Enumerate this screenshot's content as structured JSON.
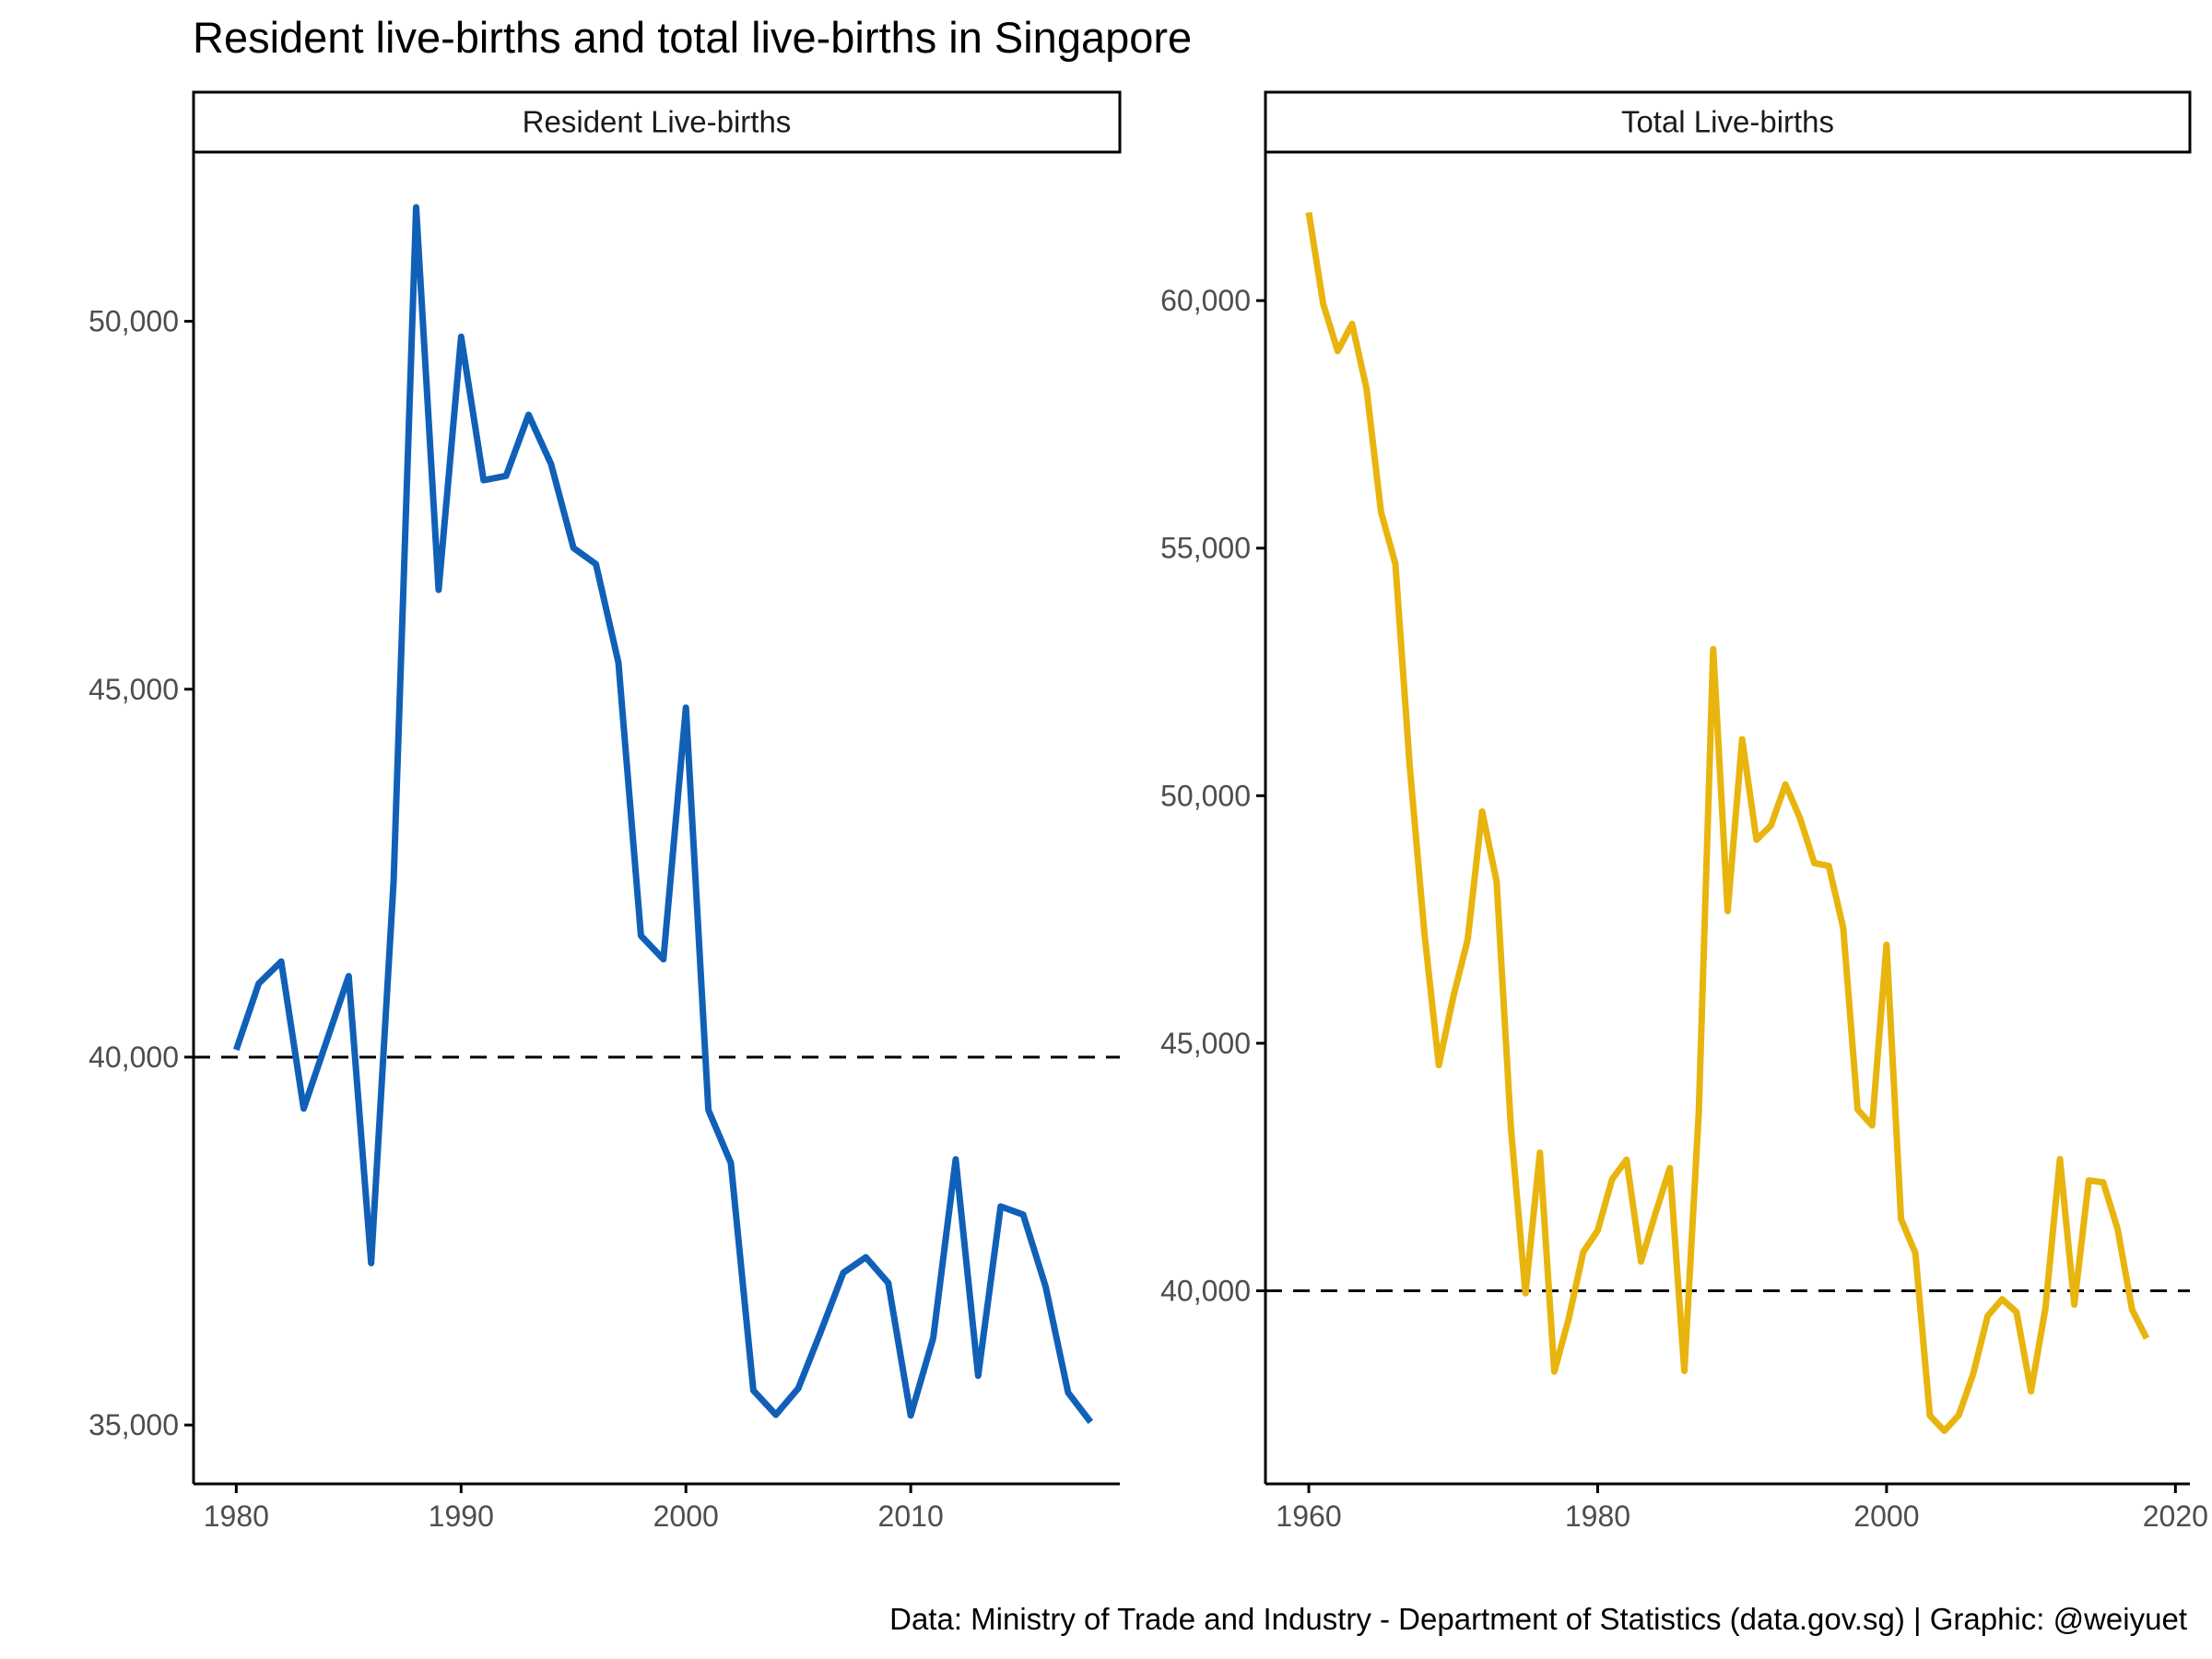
{
  "title": "Resident live-births and total live-births in Singapore",
  "caption": "Data: Ministry of Trade and Industry - Department of Statistics (data.gov.sg) | Graphic: @weiyuet",
  "chart_data": [
    {
      "type": "line",
      "panel_label": "Resident Live-births",
      "color": "#1060B8",
      "reference_line": {
        "y": 40000,
        "style": "dashed",
        "color": "#000000"
      },
      "xlim": [
        1978.1,
        2019.3
      ],
      "ylim": [
        34200,
        52300
      ],
      "x_ticks": [
        1980,
        1990,
        2000,
        2010
      ],
      "x_tick_labels": [
        "1980",
        "1990",
        "2000",
        "2010"
      ],
      "y_ticks": [
        35000,
        40000,
        45000,
        50000
      ],
      "y_tick_labels": [
        "35,000",
        "40,000",
        "45,000",
        "50,000"
      ],
      "series": [
        {
          "x": [
            1980,
            1981,
            1982,
            1983,
            1984,
            1985,
            1986,
            1987,
            1988,
            1989,
            1990,
            1991,
            1992,
            1993,
            1994,
            1995,
            1996,
            1997,
            1998,
            1999,
            2000,
            2001,
            2002,
            2003,
            2004,
            2005,
            2006,
            2007,
            2008,
            2009,
            2010,
            2011,
            2012,
            2013,
            2014,
            2015,
            2016,
            2017,
            2018
          ],
          "y": [
            40100,
            41000,
            41300,
            39300,
            40200,
            41100,
            37200,
            42400,
            51550,
            46350,
            49790,
            47840,
            47900,
            48730,
            48060,
            46920,
            46700,
            45360,
            41650,
            41330,
            44750,
            39280,
            38560,
            35470,
            35140,
            35500,
            36270,
            37070,
            37280,
            36930,
            35130,
            36180,
            38610,
            35670,
            37970,
            37860,
            36880,
            35440,
            35040
          ]
        }
      ]
    },
    {
      "type": "line",
      "panel_label": "Total Live-births",
      "color": "#E8B40E",
      "reference_line": {
        "y": 40000,
        "style": "dashed",
        "color": "#000000"
      },
      "xlim": [
        1957.0,
        2021.0
      ],
      "ylim": [
        36100,
        63000
      ],
      "x_ticks": [
        1960,
        1980,
        2000,
        2020
      ],
      "x_tick_labels": [
        "1960",
        "1980",
        "2000",
        "2020"
      ],
      "y_ticks": [
        40000,
        45000,
        50000,
        55000,
        60000
      ],
      "y_tick_labels": [
        "40,000",
        "45,000",
        "50,000",
        "55,000",
        "60,000"
      ],
      "series": [
        {
          "x": [
            1960,
            1961,
            1962,
            1963,
            1964,
            1965,
            1966,
            1967,
            1968,
            1969,
            1970,
            1971,
            1972,
            1973,
            1974,
            1975,
            1976,
            1977,
            1978,
            1979,
            1980,
            1981,
            1982,
            1983,
            1984,
            1985,
            1986,
            1987,
            1988,
            1989,
            1990,
            1991,
            1992,
            1993,
            1994,
            1995,
            1996,
            1997,
            1998,
            1999,
            2000,
            2001,
            2002,
            2003,
            2004,
            2005,
            2006,
            2007,
            2008,
            2009,
            2010,
            2011,
            2012,
            2013,
            2014,
            2015,
            2016,
            2017,
            2018
          ],
          "y": [
            61780,
            59930,
            58980,
            59530,
            58220,
            55730,
            54680,
            50560,
            47240,
            44560,
            45930,
            47090,
            49680,
            48270,
            43270,
            39950,
            42790,
            38370,
            39440,
            40780,
            41220,
            42250,
            42650,
            40590,
            41560,
            42480,
            38380,
            43620,
            52960,
            47670,
            51140,
            49110,
            49400,
            50230,
            49550,
            48640,
            48580,
            47330,
            43660,
            43340,
            46990,
            41450,
            40760,
            37480,
            37170,
            37490,
            38320,
            39490,
            39830,
            39570,
            37970,
            39650,
            42660,
            39720,
            42230,
            42190,
            41250,
            39620,
            39040
          ]
        }
      ]
    }
  ]
}
